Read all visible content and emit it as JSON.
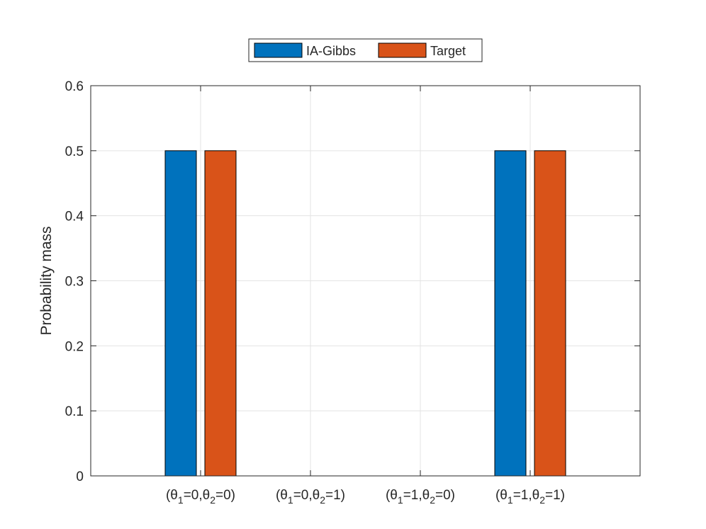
{
  "chart_data": {
    "type": "bar",
    "title": "",
    "xlabel": "",
    "ylabel": "Probability mass",
    "ylim": [
      0,
      0.6
    ],
    "yticks": [
      0,
      0.1,
      0.2,
      0.3,
      0.4,
      0.5,
      0.6
    ],
    "ytick_labels": [
      "0",
      "0.1",
      "0.2",
      "0.3",
      "0.4",
      "0.5",
      "0.6"
    ],
    "grid": true,
    "legend_position": "top-center",
    "categories": [
      {
        "label": "(θ1=0,θ2=0)",
        "pre": "(θ",
        "s1": "1",
        "mid": "=0,θ",
        "s2": "2",
        "post": "=0)"
      },
      {
        "label": "(θ1=0,θ2=1)",
        "pre": "(θ",
        "s1": "1",
        "mid": "=0,θ",
        "s2": "2",
        "post": "=1)"
      },
      {
        "label": "(θ1=1,θ2=0)",
        "pre": "(θ",
        "s1": "1",
        "mid": "=1,θ",
        "s2": "2",
        "post": "=0)"
      },
      {
        "label": "(θ1=1,θ2=1)",
        "pre": "(θ",
        "s1": "1",
        "mid": "=1,θ",
        "s2": "2",
        "post": "=1)"
      }
    ],
    "series": [
      {
        "name": "IA-Gibbs",
        "color": "#0072bd",
        "values": [
          0.5,
          0,
          0,
          0.5
        ]
      },
      {
        "name": "Target",
        "color": "#d95319",
        "values": [
          0.5,
          0,
          0,
          0.5
        ]
      }
    ]
  }
}
